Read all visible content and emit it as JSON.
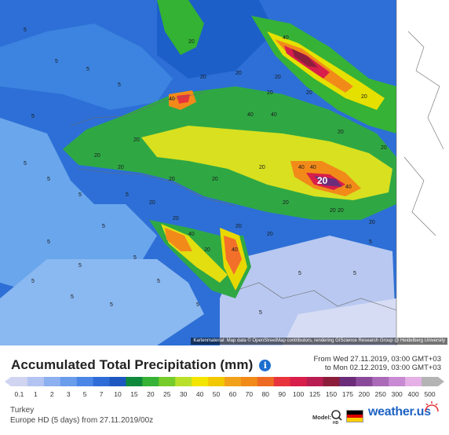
{
  "map": {
    "attribution": "Kartenmaterial: Map data © OpenStreetMap contributors, rendering GIScience Research Group @ Heidelberg University",
    "contour_labels": [
      "40",
      "40",
      "40",
      "40",
      "40",
      "20",
      "20",
      "20",
      "20",
      "20",
      "20",
      "20",
      "20",
      "20",
      "20",
      "20",
      "20",
      "20",
      "5",
      "5",
      "5",
      "5",
      "5",
      "5",
      "5",
      "5",
      "5",
      "5",
      "5",
      "5",
      "5",
      "5",
      "5",
      "5",
      "5",
      "5",
      "5",
      "5",
      "5",
      "5",
      "20",
      "40",
      "20",
      "20",
      "20",
      "20",
      "20",
      "40",
      "40",
      "40",
      "20",
      "20",
      "20",
      "20",
      "20"
    ],
    "colors": {
      "sea_deep": "#2d6fd6",
      "sea_light": "#5a9de8",
      "green": "#33b233",
      "yellow": "#f2e600",
      "orange": "#f28a1a",
      "red": "#e8343c",
      "maroon": "#8c1e3c",
      "purple": "#6b2d7a",
      "no_data": "#ffffff"
    }
  },
  "header": {
    "title": "Accumulated Total Precipitation (mm)",
    "info_icon": "info-icon",
    "date_from": "From Wed 27.11.2019, 03:00 GMT+03",
    "date_to": "to Mon 02.12.2019, 03:00 GMT+03"
  },
  "legend": {
    "ticks": [
      "0.1",
      "1",
      "2",
      "3",
      "5",
      "7",
      "10",
      "15",
      "20",
      "25",
      "30",
      "40",
      "50",
      "60",
      "70",
      "80",
      "90",
      "100",
      "125",
      "150",
      "175",
      "200",
      "250",
      "300",
      "400",
      "500"
    ],
    "colors": [
      "#d0d4f0",
      "#b4c4f2",
      "#8cb0f0",
      "#6a9cec",
      "#4a86e6",
      "#2e6cd8",
      "#1c58c0",
      "#0f8a3c",
      "#36b236",
      "#76cc2a",
      "#b8e02a",
      "#f2e600",
      "#f2c800",
      "#f2a21a",
      "#f28a1a",
      "#ee6a22",
      "#e8343c",
      "#d81e4a",
      "#b81e52",
      "#8c1e3c",
      "#6b2d7a",
      "#8a4a9a",
      "#aa6ab8",
      "#c88ad2",
      "#e4b0e6",
      "#b4b4b4"
    ]
  },
  "footer": {
    "region": "Turkey",
    "model_run": "Europe HD (5 days) from 27.11.2019/00z",
    "model_label": "Model:",
    "model_icon": "hd-model-icon",
    "flag": [
      "#000000",
      "#dd0000",
      "#ffce00"
    ],
    "brand": "weather.us"
  }
}
